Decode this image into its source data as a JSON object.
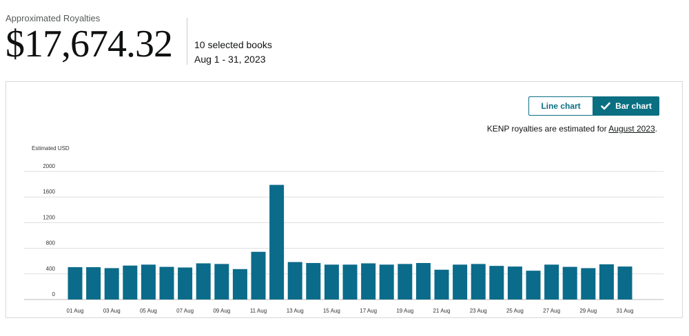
{
  "summary": {
    "label": "Approximated Royalties",
    "amount": "$17,674.32",
    "books": "10 selected books",
    "range": "Aug 1 - 31, 2023"
  },
  "chart_controls": {
    "line_label": "Line chart",
    "bar_label": "Bar chart",
    "selected": "bar"
  },
  "note": {
    "prefix": "KENP royalties are estimated for ",
    "link": "August 2023",
    "suffix": "."
  },
  "colors": {
    "bar": "#0b6b8a",
    "accent": "#0b6f82",
    "grid": "#dddddd"
  },
  "icons": [
    "check-icon"
  ],
  "chart_data": {
    "type": "bar",
    "ylabel": "Estimated USD",
    "ylim": [
      0,
      2000
    ],
    "yticks": [
      0,
      400,
      800,
      1200,
      1600,
      2000
    ],
    "categories": [
      "01 Aug",
      "02 Aug",
      "03 Aug",
      "04 Aug",
      "05 Aug",
      "06 Aug",
      "07 Aug",
      "08 Aug",
      "09 Aug",
      "10 Aug",
      "11 Aug",
      "12 Aug",
      "13 Aug",
      "14 Aug",
      "15 Aug",
      "16 Aug",
      "17 Aug",
      "18 Aug",
      "19 Aug",
      "20 Aug",
      "21 Aug",
      "22 Aug",
      "23 Aug",
      "24 Aug",
      "25 Aug",
      "26 Aug",
      "27 Aug",
      "28 Aug",
      "29 Aug",
      "30 Aug",
      "31 Aug"
    ],
    "tick_labels": [
      "01 Aug",
      "03 Aug",
      "05 Aug",
      "07 Aug",
      "09 Aug",
      "11 Aug",
      "13 Aug",
      "15 Aug",
      "17 Aug",
      "19 Aug",
      "21 Aug",
      "23 Aug",
      "25 Aug",
      "27 Aug",
      "29 Aug",
      "31 Aug"
    ],
    "values": [
      505,
      505,
      490,
      530,
      545,
      510,
      500,
      565,
      555,
      475,
      745,
      1790,
      585,
      570,
      545,
      545,
      565,
      545,
      555,
      570,
      465,
      545,
      555,
      525,
      515,
      450,
      545,
      510,
      490,
      550,
      515
    ],
    "grid": true,
    "legend": "none"
  }
}
